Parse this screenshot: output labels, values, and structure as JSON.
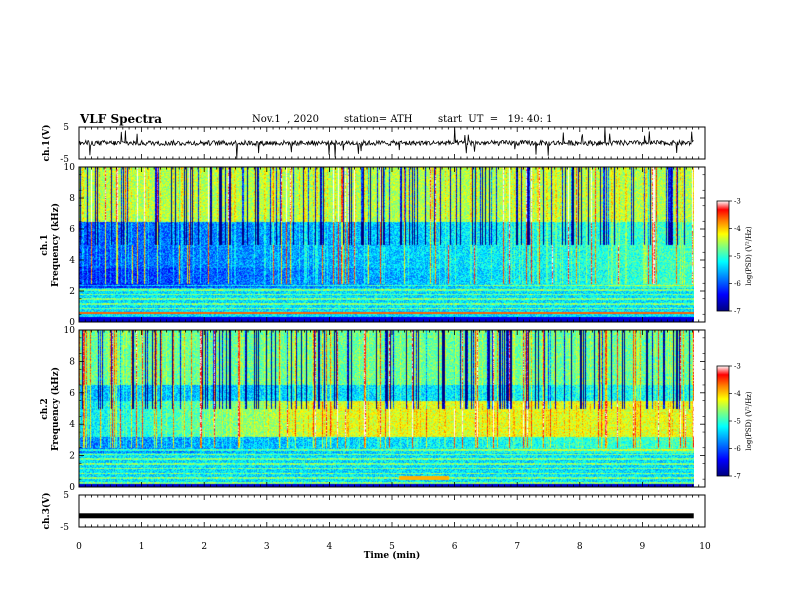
{
  "header": {
    "title": "VLF Spectra",
    "date": "Nov.1  , 2020",
    "station": "station= ATH",
    "start": "start  UT  =   19: 40: 1"
  },
  "chart_data": [
    {
      "type": "line",
      "panel": "waveform-ch1",
      "ylabel": "ch.1(V)",
      "ylim": [
        -5,
        5
      ],
      "yticks": [
        "5",
        "-5"
      ],
      "description_values": "noisy waveform near 0 V with spikes"
    },
    {
      "type": "heatmap",
      "panel": "spectrogram-ch1",
      "ylabel_lines": [
        "ch.1",
        "Frequency  (kHz)"
      ],
      "ylim": [
        0,
        10
      ],
      "yticks": [
        "0",
        "2",
        "4",
        "6",
        "8",
        "10"
      ],
      "colorbar": {
        "label": "log(PSD) (V²/Hz)",
        "range": [
          -7,
          -3
        ],
        "ticks": [
          "-3",
          "-4",
          "-5",
          "-6",
          "-7"
        ],
        "colormap": [
          "#00007f",
          "#0000ff",
          "#007fff",
          "#00ffff",
          "#7fff7f",
          "#ffff00",
          "#ff7f00",
          "#ff0000",
          "#ffffff"
        ]
      }
    },
    {
      "type": "heatmap",
      "panel": "spectrogram-ch2",
      "ylabel_lines": [
        "ch.2",
        "Frequency  (kHz)"
      ],
      "ylim": [
        0,
        10
      ],
      "yticks": [
        "0",
        "2",
        "4",
        "6",
        "8",
        "10"
      ],
      "colorbar": {
        "label": "log(PSD) (V²/Hz)",
        "range": [
          -7,
          -3
        ],
        "ticks": [
          "-3",
          "-4",
          "-5",
          "-6",
          "-7"
        ],
        "colormap": [
          "#00007f",
          "#0000ff",
          "#007fff",
          "#00ffff",
          "#7fff7f",
          "#ffff00",
          "#ff7f00",
          "#ff0000",
          "#ffffff"
        ]
      }
    },
    {
      "type": "line",
      "panel": "waveform-ch3",
      "ylabel": "ch.3(V)",
      "ylim": [
        -5,
        5
      ],
      "yticks": [
        "5",
        "-5"
      ],
      "value_level": -1.5
    }
  ],
  "xaxis": {
    "label": "Time  (min)",
    "xlim": [
      0,
      10
    ],
    "ticks": [
      "0",
      "1",
      "2",
      "3",
      "4",
      "5",
      "6",
      "7",
      "8",
      "9",
      "10"
    ],
    "data_end": 9.82
  }
}
